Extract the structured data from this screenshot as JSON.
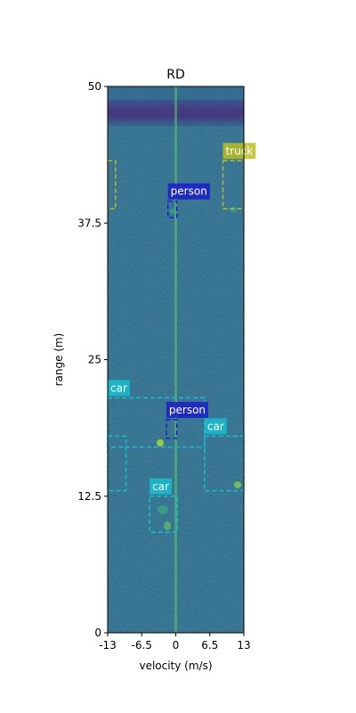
{
  "chart_data": {
    "type": "heatmap",
    "title": "RD",
    "xlabel": "velocity (m/s)",
    "ylabel": "range (m)",
    "xlim": [
      -13,
      13
    ],
    "ylim": [
      0,
      50
    ],
    "xticks": [
      -13,
      -6.5,
      0,
      6.5,
      13
    ],
    "xtick_labels": [
      "-13",
      "-6.5",
      "0",
      "6.5",
      "13"
    ],
    "yticks": [
      0,
      12.5,
      25,
      37.5,
      50
    ],
    "ytick_labels": [
      "0",
      "12.5",
      "25",
      "37.5",
      "50"
    ],
    "colormap": "viridis",
    "grid": false,
    "legend": "none",
    "detections": [
      {
        "label": "truck",
        "color": "#bcbd22",
        "text_color": "#ffffff",
        "x": [
          9,
          13
        ],
        "y": [
          38.8,
          43.2
        ]
      },
      {
        "label": "person",
        "color": "#1a1dc9",
        "text_color": "#ffffff",
        "x": [
          -1.5,
          0.2
        ],
        "y": [
          38.0,
          39.5
        ]
      },
      {
        "label": "car",
        "color": "#17becf",
        "text_color": "#ffffff",
        "x": [
          -13,
          5.5
        ],
        "y": [
          17.0,
          21.5
        ]
      },
      {
        "label": "person",
        "color": "#1a1dc9",
        "text_color": "#ffffff",
        "x": [
          -1.8,
          0.2
        ],
        "y": [
          17.8,
          19.5
        ]
      },
      {
        "label": "car",
        "color": "#17becf",
        "text_color": "#ffffff",
        "x": [
          5.5,
          13
        ],
        "y": [
          13.0,
          18.0
        ]
      },
      {
        "label": "car",
        "color": "#17becf",
        "text_color": "#ffffff",
        "x": [
          -5,
          0.3
        ],
        "y": [
          9.2,
          12.5
        ]
      }
    ],
    "unlabeled_boxes": [
      {
        "color": "#bcbd22",
        "x": [
          -13,
          -11.5
        ],
        "y": [
          38.8,
          43.2
        ]
      },
      {
        "color": "#17becf",
        "x": [
          -13,
          -9.5
        ],
        "y": [
          13.0,
          18.0
        ]
      }
    ]
  }
}
